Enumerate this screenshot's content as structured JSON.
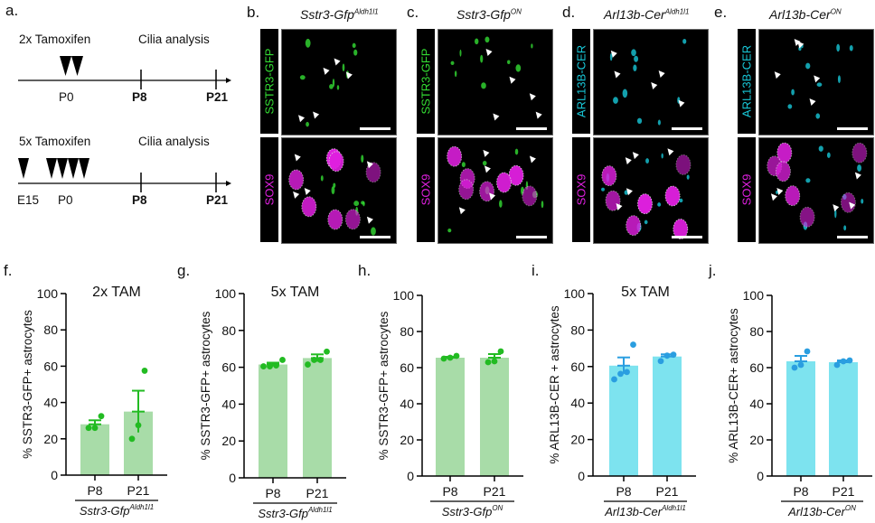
{
  "panel_labels": {
    "a": "a.",
    "b": "b.",
    "c": "c.",
    "d": "d.",
    "e": "e.",
    "f": "f.",
    "g": "g.",
    "h": "h.",
    "i": "i.",
    "j": "j."
  },
  "timeline": {
    "top": {
      "dose_label": "2x Tamoxifen",
      "analysis_label": "Cilia analysis",
      "ticks": [
        "P0",
        "P8",
        "P21"
      ]
    },
    "bottom": {
      "dose_label": "5x Tamoxifen",
      "analysis_label": "Cilia analysis",
      "ticks": [
        "E15",
        "P0",
        "P8",
        "P21"
      ]
    }
  },
  "micrographs": [
    {
      "title_base": "Sstr3-Gfp",
      "title_sup": "Aldh1l1",
      "top_channel": "SSTR3-GFP",
      "bottom_channel": "SOX9",
      "top_color": "#33dd33"
    },
    {
      "title_base": "Sstr3-Gfp",
      "title_sup": "ON",
      "top_channel": "SSTR3-GFP",
      "bottom_channel": "SOX9",
      "top_color": "#33dd33"
    },
    {
      "title_base": "Arl13b-Cer",
      "title_sup": "Aldh1l1",
      "top_channel": "ARL13B-CER",
      "bottom_channel": "SOX9",
      "top_color": "#18c8d8"
    },
    {
      "title_base": "Arl13b-Cer",
      "title_sup": "ON",
      "top_channel": "ARL13B-CER",
      "bottom_channel": "SOX9",
      "top_color": "#18c8d8"
    }
  ],
  "colors": {
    "sox9": "#e020e0",
    "gfp_bar": "#a8dca8",
    "gfp_dot": "#22bb22",
    "cer_bar": "#7de3ef",
    "cer_dot": "#2a9ee0"
  },
  "chart_data": [
    {
      "type": "bar",
      "panel": "f",
      "title": "2x TAM",
      "ylabel": "%  SSTR3-GFP+ astrocytes",
      "ylim": [
        0,
        100
      ],
      "yticks": [
        0,
        20,
        40,
        60,
        80,
        100
      ],
      "categories": [
        "P8",
        "P21"
      ],
      "group_label_base": "Sstr3-Gfp",
      "group_label_sup": "Aldh1l1",
      "color": "gfp",
      "values": [
        28,
        35
      ],
      "sem": [
        2.2,
        11.5
      ],
      "points": [
        [
          26,
          26,
          32.5
        ],
        [
          20,
          27.5,
          57.5
        ]
      ]
    },
    {
      "type": "bar",
      "panel": "g",
      "title": "5x TAM",
      "ylabel": "%  SSTR3-GFP+ astrocytes",
      "ylim": [
        0,
        100
      ],
      "yticks": [
        0,
        20,
        40,
        60,
        80,
        100
      ],
      "categories": [
        "P8",
        "P21"
      ],
      "group_label_base": "Sstr3-Gfp",
      "group_label_sup": "Aldh1l1",
      "color": "gfp",
      "values": [
        61.5,
        65
      ],
      "sem": [
        1,
        2
      ],
      "points": [
        [
          60.5,
          60.5,
          61,
          64
        ],
        [
          61.5,
          64,
          64,
          68.5
        ]
      ]
    },
    {
      "type": "bar",
      "panel": "h",
      "title": "",
      "ylabel": "%  SSTR3-GFP+ astrocytes",
      "ylim": [
        0,
        100
      ],
      "yticks": [
        0,
        20,
        40,
        60,
        80,
        100
      ],
      "categories": [
        "P8",
        "P21"
      ],
      "group_label_base": "Sstr3-Gfp",
      "group_label_sup": "ON",
      "color": "gfp",
      "values": [
        65.5,
        65.5
      ],
      "sem": [
        0.5,
        2
      ],
      "points": [
        [
          65,
          65.5,
          66.5
        ],
        [
          63,
          63.5,
          69
        ]
      ]
    },
    {
      "type": "bar",
      "panel": "i",
      "title": "5x TAM",
      "ylabel": "%  ARL13B-CER + astrocytes",
      "ylim": [
        0,
        100
      ],
      "yticks": [
        0,
        20,
        40,
        60,
        80,
        100
      ],
      "categories": [
        "P8",
        "P21"
      ],
      "group_label_base": "Arl13b-Cer",
      "group_label_sup": "Aldh1l1",
      "color": "cer",
      "values": [
        60.5,
        65.5
      ],
      "sem": [
        4.5,
        1.2
      ],
      "points": [
        [
          53,
          56,
          57,
          72
        ],
        [
          63,
          66,
          66.5
        ]
      ]
    },
    {
      "type": "bar",
      "panel": "j",
      "title": "",
      "ylabel": "%  ARL13B-CER+ astrocytes",
      "ylim": [
        0,
        100
      ],
      "yticks": [
        0,
        20,
        40,
        60,
        80,
        100
      ],
      "categories": [
        "P8",
        "P21"
      ],
      "group_label_base": "Arl13b-Cer",
      "group_label_sup": "ON",
      "color": "cer",
      "values": [
        63.5,
        63
      ],
      "sem": [
        3,
        1
      ],
      "points": [
        [
          60,
          61.5,
          69
        ],
        [
          61.5,
          63.5,
          64
        ]
      ]
    }
  ]
}
